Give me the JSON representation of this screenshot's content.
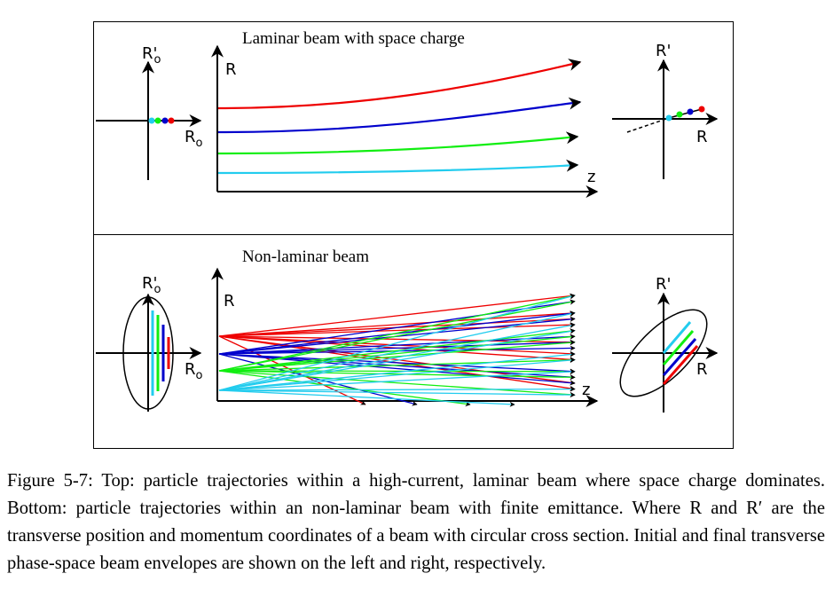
{
  "top_panel": {
    "title": "Laminar beam with space charge",
    "left_y_label": "R'",
    "left_y_sub": "o",
    "left_x_label": "R",
    "left_x_sub": "o",
    "center_y_label": "R",
    "center_x_label": "z",
    "right_y_label": "R'",
    "right_x_label": "R"
  },
  "bottom_panel": {
    "title": "Non-laminar beam",
    "left_y_label": "R'",
    "left_y_sub": "o",
    "left_x_label": "R",
    "left_x_sub": "o",
    "center_y_label": "R",
    "center_x_label": "z",
    "right_y_label": "R'",
    "right_x_label": "R"
  },
  "colors": {
    "red": "#ee0000",
    "blue": "#0000cc",
    "green": "#11ee11",
    "cyan": "#22ccee",
    "black": "#000000"
  },
  "caption": {
    "label": "Figure 5-7:",
    "text": "Top: particle trajectories within a high-current, laminar beam where space charge dominates. Bottom: particle trajectories within an non-laminar beam with finite emittance. Where R and R′ are the transverse position and momentum coordinates of a beam with circular cross section. Initial and final transverse phase-space beam envelopes are shown on the left and right, respectively."
  }
}
